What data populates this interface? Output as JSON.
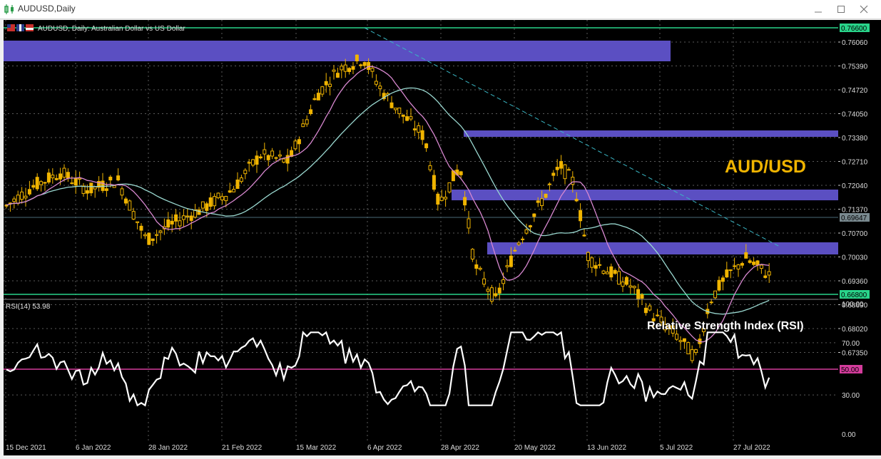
{
  "window": {
    "title": "AUDUSD,Daily",
    "minimize_icon": "minimize-icon",
    "maximize_icon": "maximize-icon",
    "close_icon": "close-icon"
  },
  "chart": {
    "symbol_caption": "AUDUSD, Daily:  Australian Dollar vs US Dollar",
    "overlay_label": "AUD/USD",
    "rsi_title": "Relative Strength Index (RSI)",
    "rsi_caption": "RSI(14) 53.98",
    "price_ticks": [
      "0.76060",
      "0.75390",
      "0.74720",
      "0.74050",
      "0.73380",
      "0.72710",
      "0.72040",
      "0.71370",
      "0.70700",
      "0.70030",
      "0.69360",
      "0.68690",
      "0.68020",
      "0.67350"
    ],
    "price_tags": {
      "high": "0.76600",
      "current": "0.69647",
      "low": "0.66800"
    },
    "rsi_ticks": [
      "100.00",
      "70.00",
      "30.00",
      "0.00"
    ],
    "rsi_level_tag": "50.00",
    "time_ticks": [
      "15 Dec 2021",
      "6 Jan 2022",
      "28 Jan 2022",
      "21 Feb 2022",
      "15 Mar 2022",
      "6 Apr 2022",
      "28 Apr 2022",
      "20 May 2022",
      "13 Jun 2022",
      "5 Jul 2022",
      "27 Jul 2022"
    ],
    "colors": {
      "background": "#000000",
      "grid": "#5a5a5a",
      "bull_candle": "#f0b400",
      "zone": "#5b4fc2",
      "ma_fast": "#d888d0",
      "ma_slow": "#9ad8d0",
      "trendline": "#39b6c4",
      "level_line": "#29d48a",
      "rsi_line": "#ffffff",
      "rsi_level": "#d43c9c",
      "label_gold": "#f0b400"
    }
  }
}
